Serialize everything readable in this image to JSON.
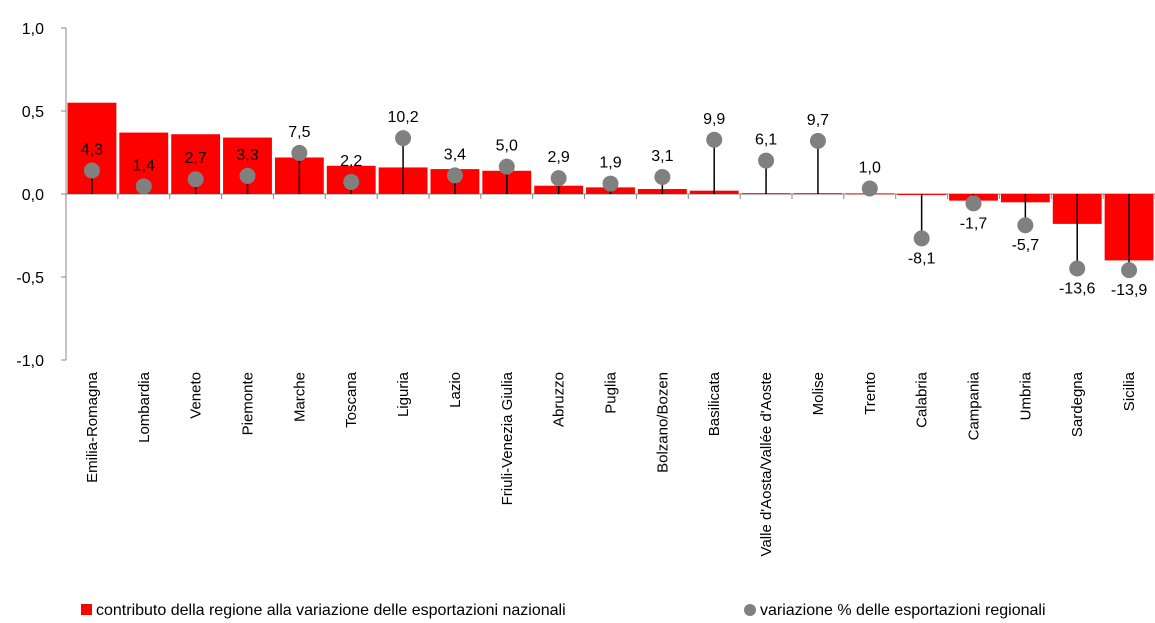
{
  "chart_data": {
    "type": "bar",
    "categories": [
      "Emilia-Romagna",
      "Lombardia",
      "Veneto",
      "Piemonte",
      "Marche",
      "Toscana",
      "Liguria",
      "Lazio",
      "Friuli-Venezia Giulia",
      "Abruzzo",
      "Puglia",
      "Bolzano/Bozen",
      "Basilicata",
      "Valle d'Aosta/Vallée d'Aoste",
      "Molise",
      "Trento",
      "Calabria",
      "Campania",
      "Umbria",
      "Sardegna",
      "Sicilia"
    ],
    "series": [
      {
        "name": "contributo della regione alla variazione delle esportazioni nazionali",
        "marker": "bar",
        "color": "#ff0000",
        "values": [
          0.55,
          0.37,
          0.36,
          0.34,
          0.22,
          0.17,
          0.16,
          0.15,
          0.14,
          0.05,
          0.04,
          0.03,
          0.02,
          0.005,
          0.005,
          0.004,
          -0.005,
          -0.04,
          -0.05,
          -0.18,
          -0.4
        ]
      },
      {
        "name": "variazione % delle esportazioni regionali",
        "marker": "dot",
        "color": "#808080",
        "values": [
          4.3,
          1.4,
          2.7,
          3.3,
          7.5,
          2.2,
          10.2,
          3.4,
          5.0,
          2.9,
          1.9,
          3.1,
          9.9,
          6.1,
          9.7,
          1.0,
          -8.1,
          -1.7,
          -5.7,
          -13.6,
          -13.9
        ],
        "labels": [
          "4,3",
          "1,4",
          "2,7",
          "3,3",
          "7,5",
          "2,2",
          "10,2",
          "3,4",
          "5,0",
          "2,9",
          "1,9",
          "3,1",
          "9,9",
          "6,1",
          "9,7",
          "1,0",
          "-8,1",
          "-1,7",
          "-5,7",
          "-13,6",
          "-13,9"
        ]
      }
    ],
    "yticks": [
      "1,0",
      "0,5",
      "0,0",
      "-0,5",
      "-1,0"
    ],
    "ytick_values": [
      1.0,
      0.5,
      0.0,
      -0.5,
      -1.0
    ],
    "ylim": [
      -1.0,
      1.0
    ],
    "dot_scale_ratio": 0.033,
    "legend_position": "bottom",
    "grid": false
  }
}
